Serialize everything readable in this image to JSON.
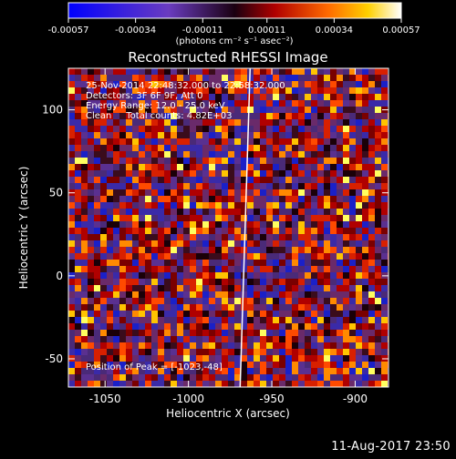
{
  "chart_data": {
    "type": "heatmap",
    "title": "Reconstructed RHESSI Image",
    "xlabel": "Heliocentric X (arcsec)",
    "ylabel": "Heliocentric Y (arcsec)",
    "xlim": [
      -1072,
      -880
    ],
    "ylim": [
      -67,
      125
    ],
    "xticks": [
      -1050,
      -1000,
      -950,
      -900
    ],
    "xtick_labels": [
      "-1050",
      "-1000",
      "-950",
      "-900"
    ],
    "yticks": [
      -50,
      0,
      50,
      100
    ],
    "ytick_labels": [
      "-50",
      "0",
      "50",
      "100"
    ],
    "colorbar": {
      "ticks": [
        -0.00057,
        -0.00034,
        -0.00011,
        0.00011,
        0.00034,
        0.00057
      ],
      "tick_labels": [
        "-0.00057",
        "-0.00034",
        "-0.00011",
        "0.00011",
        "0.00034",
        "0.00057"
      ],
      "range": [
        -0.00057,
        0.00057
      ],
      "unit_label": "(photons cm⁻² s⁻¹ asec⁻²)"
    },
    "annotations": [
      "25-Nov-2014 22:48:32.000 to 22:58:32.000",
      "Detectors: 3F 6F 9F, Att 0",
      "Energy Range: 12.0 - 25.0 keV",
      "Clean     Total counts: 4.82E+03"
    ],
    "peak_label": "Position of Peak = [-1023,-48]",
    "limb_x_at_ymin": -969,
    "limb_x_at_ymax": -963
  },
  "footer": {
    "timestamp": "11-Aug-2017 23:50"
  },
  "colors": {
    "background": "#000000",
    "limb": "#ffffff",
    "map_base": "#4a2a78"
  }
}
